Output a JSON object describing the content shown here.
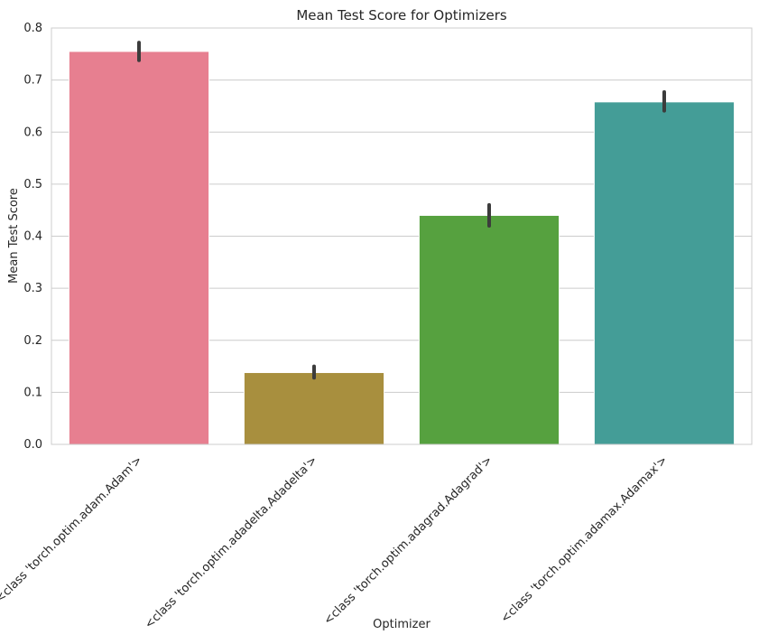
{
  "chart_data": {
    "type": "bar",
    "title": "Mean Test Score for Optimizers",
    "xlabel": "Optimizer",
    "ylabel": "Mean Test Score",
    "categories": [
      "<class 'torch.optim.adam.Adam'>",
      "<class 'torch.optim.adadelta.Adadelta'>",
      "<class 'torch.optim.adagrad.Adagrad'>",
      "<class 'torch.optim.adamax.Adamax'>"
    ],
    "values": [
      0.755,
      0.138,
      0.44,
      0.658
    ],
    "error_low": [
      0.738,
      0.128,
      0.42,
      0.641
    ],
    "error_high": [
      0.772,
      0.15,
      0.46,
      0.677
    ],
    "colors": [
      "#e77f90",
      "#a88f3e",
      "#56a13f",
      "#449d97"
    ],
    "error_color": "#3c3c3c",
    "ylim": [
      0,
      0.8
    ],
    "yticks": [
      0.0,
      0.1,
      0.2,
      0.3,
      0.4,
      0.5,
      0.6,
      0.7,
      0.8
    ],
    "ytick_labels": [
      "0.0",
      "0.1",
      "0.2",
      "0.3",
      "0.4",
      "0.5",
      "0.6",
      "0.7",
      "0.8"
    ],
    "grid": true,
    "grid_color": "#cccccc",
    "legend": "none"
  }
}
